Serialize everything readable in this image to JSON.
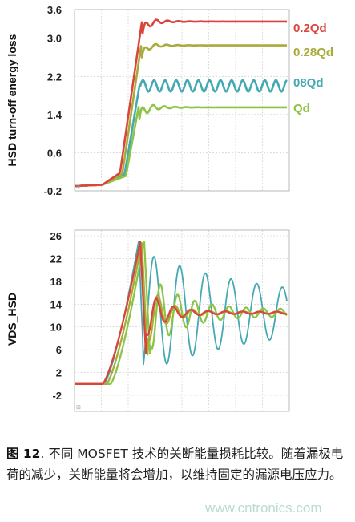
{
  "chart_data": [
    {
      "type": "line",
      "ylabel": "HSD turn-off energy loss",
      "yticks": [
        -0.2,
        0.6,
        1.4,
        2.2,
        3.0,
        3.6
      ],
      "ylim": [
        -0.2,
        3.6
      ],
      "grid": true,
      "legend": "right, inline labels",
      "series": [
        {
          "name": "0.2Qd",
          "color": "#d9453d",
          "final": 3.35,
          "ripple": 0.04
        },
        {
          "name": "0.28Qd",
          "color": "#a8ab3a",
          "final": 2.85,
          "ripple": 0.03
        },
        {
          "name": "08Qd",
          "color": "#44a9b2",
          "final": 2.0,
          "ripple": 0.12
        },
        {
          "name": "Qd",
          "color": "#8cc445",
          "final": 1.55,
          "ripple": 0.05
        }
      ]
    },
    {
      "type": "line",
      "ylabel": "VDS_HSD",
      "yticks": [
        -2,
        2,
        6,
        10,
        14,
        18,
        22,
        26
      ],
      "ylim": [
        -2,
        26
      ],
      "grid": true,
      "series": [
        {
          "color": "#d9453d",
          "peak": 25,
          "final": 12.5,
          "ripple": 1.2
        },
        {
          "color": "#a8ab3a",
          "peak": 25,
          "final": 12.5,
          "ripple": 1.8
        },
        {
          "color": "#8cc445",
          "peak": 25.5,
          "final": 12.5,
          "ripple": 2.6
        },
        {
          "color": "#44a9b2",
          "peak": 25,
          "final": 12.5,
          "ripple": 9.0
        }
      ]
    }
  ],
  "caption": {
    "figure_label": "图 12",
    "text": ". 不同 MOSFET 技术的关断能量损耗比较。随着漏极电荷的减少，关断能量将会增加，以维持固定的漏源电压应力。"
  },
  "watermark": "www.cntronics.com"
}
